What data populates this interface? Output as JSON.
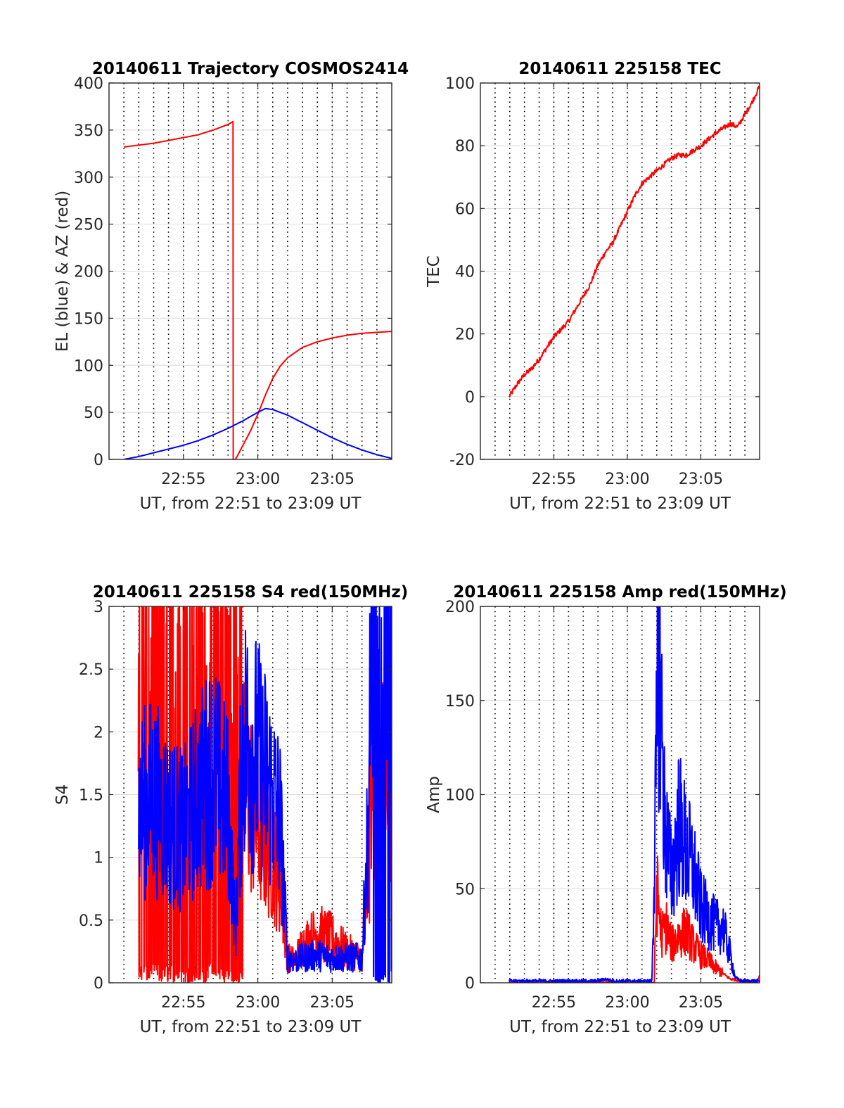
{
  "figure": {
    "background": "#ffffff",
    "colors": {
      "red": "#ff0000",
      "blue": "#0000ff",
      "axis": "#262626",
      "grid": "#dcdcdc"
    }
  },
  "chart_data": [
    {
      "id": "traj",
      "type": "line",
      "title": "20140611 Trajectory COSMOS2414",
      "xlabel": "UT, from 22:51 to 23:09 UT",
      "ylabel": "EL (blue) & AZ (red)",
      "xlim": [
        "22:50",
        "23:09"
      ],
      "ylim": [
        0,
        400
      ],
      "xticks": [
        "22:55",
        "23:00",
        "23:05"
      ],
      "yticks": [
        "0",
        "50",
        "100",
        "150",
        "200",
        "250",
        "300",
        "350",
        "400"
      ],
      "grid": true,
      "series": [
        {
          "color": "#ff0000",
          "x": [
            "22:51:00",
            "22:52:00",
            "22:53:00",
            "22:54:00",
            "22:55:00",
            "22:56:00",
            "22:57:00",
            "22:57:30",
            "22:58:00",
            "22:58:20",
            "22:58:30",
            "22:59:00",
            "22:59:30",
            "23:00:00",
            "23:00:30",
            "23:01:00",
            "23:01:30",
            "23:02:00",
            "23:03:00",
            "23:04:00",
            "23:05:00",
            "23:06:00",
            "23:07:00",
            "23:08:00",
            "23:09:00"
          ],
          "y": [
            332,
            334,
            336,
            339,
            342,
            345,
            350,
            353,
            356,
            359,
            0,
            15,
            30,
            48,
            68,
            86,
            99,
            108,
            119,
            125,
            129,
            132,
            134,
            135,
            136
          ]
        },
        {
          "color": "#0000ff",
          "x": [
            "22:51:00",
            "22:52:00",
            "22:53:00",
            "22:54:00",
            "22:55:00",
            "22:56:00",
            "22:57:00",
            "22:58:00",
            "22:59:00",
            "23:00:00",
            "23:00:30",
            "23:01:00",
            "23:02:00",
            "23:03:00",
            "23:04:00",
            "23:05:00",
            "23:06:00",
            "23:07:00",
            "23:08:00",
            "23:09:00"
          ],
          "y": [
            0,
            3,
            7,
            11,
            15,
            20,
            26,
            33,
            41,
            50,
            54,
            53,
            47,
            39,
            31,
            23,
            16,
            10,
            5,
            1
          ]
        }
      ]
    },
    {
      "id": "tec",
      "type": "line",
      "title": "20140611 225158 TEC",
      "xlabel": "UT, from 22:51 to 23:09 UT",
      "ylabel": "TEC",
      "xlim": [
        "22:50",
        "23:09"
      ],
      "ylim": [
        -20,
        100
      ],
      "xticks": [
        "22:55",
        "23:00",
        "23:05"
      ],
      "yticks": [
        "-20",
        "0",
        "20",
        "40",
        "60",
        "80",
        "100"
      ],
      "grid": true,
      "series": [
        {
          "color": "#ff0000",
          "x": [
            "22:51:58",
            "22:52:30",
            "22:53:00",
            "22:53:30",
            "22:54:00",
            "22:55:00",
            "22:56:00",
            "22:57:00",
            "22:57:30",
            "22:58:00",
            "22:58:30",
            "22:59:00",
            "22:59:30",
            "23:00:00",
            "23:00:30",
            "23:01:00",
            "23:01:30",
            "23:02:00",
            "23:02:30",
            "23:03:00",
            "23:03:30",
            "23:04:00",
            "23:05:00",
            "23:06:00",
            "23:07:00",
            "23:07:30",
            "23:08:00",
            "23:08:30",
            "23:09:00"
          ],
          "y": [
            0,
            4,
            7,
            9,
            12,
            19,
            24,
            32,
            36,
            42,
            46,
            49,
            54,
            59,
            64,
            68,
            70,
            72,
            74,
            76,
            77,
            77,
            80,
            84,
            87,
            86,
            90,
            94,
            99
          ]
        }
      ]
    },
    {
      "id": "s4",
      "type": "line",
      "title": "20140611 225158 S4 red(150MHz)",
      "xlabel": "UT, from 22:51 to 23:09 UT",
      "ylabel": "S4",
      "xlim": [
        "22:50",
        "23:09"
      ],
      "ylim": [
        0,
        3
      ],
      "xticks": [
        "22:55",
        "23:00",
        "23:05"
      ],
      "yticks": [
        "0",
        "0.5",
        "1",
        "1.5",
        "2",
        "2.5",
        "3"
      ],
      "grid": true,
      "series": [
        {
          "color": "#ff0000",
          "x": [
            "22:51:58",
            "22:53:00",
            "22:54:00",
            "22:55:00",
            "22:56:00",
            "22:57:00",
            "22:58:00",
            "22:58:30",
            "22:59:00",
            "23:00:00",
            "23:01:00",
            "23:01:30",
            "23:02:00",
            "23:02:30",
            "23:03:00",
            "23:04:00",
            "23:05:00",
            "23:06:00",
            "23:07:00",
            "23:08:00",
            "23:09:00"
          ],
          "y": [
            1.5,
            1.4,
            1.2,
            1.3,
            1.4,
            1.5,
            1.2,
            0.3,
            1.6,
            1.3,
            1.0,
            0.8,
            0.2,
            0.18,
            0.3,
            0.4,
            0.35,
            0.25,
            0.2,
            1.8,
            1.4
          ]
        },
        {
          "color": "#0000ff",
          "x": [
            "22:51:58",
            "22:53:00",
            "22:54:00",
            "22:55:00",
            "22:56:00",
            "22:57:00",
            "22:58:00",
            "22:58:30",
            "22:59:00",
            "23:00:00",
            "23:01:00",
            "23:01:30",
            "23:02:00",
            "23:02:30",
            "23:03:00",
            "23:04:00",
            "23:05:00",
            "23:06:00",
            "23:07:00",
            "23:07:30",
            "23:08:00",
            "23:09:00"
          ],
          "y": [
            1.4,
            1.5,
            1.3,
            1.2,
            1.5,
            1.7,
            1.4,
            0.4,
            2.0,
            1.8,
            1.5,
            1.3,
            0.2,
            0.18,
            0.2,
            0.22,
            0.2,
            0.2,
            0.2,
            1.5,
            2.0,
            1.6
          ]
        }
      ]
    },
    {
      "id": "amp",
      "type": "line",
      "title": "20140611 225158 Amp red(150MHz)",
      "xlabel": "UT, from 22:51 to 23:09 UT",
      "ylabel": "Amp",
      "xlim": [
        "22:50",
        "23:09"
      ],
      "ylim": [
        0,
        200
      ],
      "xticks": [
        "22:55",
        "23:00",
        "23:05"
      ],
      "yticks": [
        "0",
        "50",
        "100",
        "150",
        "200"
      ],
      "grid": true,
      "series": [
        {
          "color": "#ff0000",
          "x": [
            "22:51:58",
            "22:55:00",
            "23:00:00",
            "23:01:50",
            "23:02:00",
            "23:02:20",
            "23:02:40",
            "23:03:00",
            "23:03:30",
            "23:04:00",
            "23:04:30",
            "23:05:00",
            "23:05:30",
            "23:06:00",
            "23:06:30",
            "23:07:00",
            "23:08:00",
            "23:08:50",
            "23:09:00"
          ],
          "y": [
            0,
            0,
            0,
            0,
            50,
            25,
            30,
            20,
            25,
            28,
            20,
            15,
            12,
            8,
            5,
            2,
            1,
            0,
            4
          ]
        },
        {
          "color": "#0000ff",
          "x": [
            "22:51:58",
            "22:55:00",
            "22:58:00",
            "22:58:30",
            "22:59:00",
            "23:00:00",
            "23:01:40",
            "23:02:00",
            "23:02:10",
            "23:02:30",
            "23:03:00",
            "23:03:30",
            "23:04:00",
            "23:04:30",
            "23:05:00",
            "23:05:30",
            "23:06:00",
            "23:06:30",
            "23:07:00",
            "23:07:20",
            "23:07:40",
            "23:08:00",
            "23:09:00"
          ],
          "y": [
            1,
            1,
            1,
            2,
            1,
            1,
            1,
            120,
            190,
            90,
            55,
            85,
            70,
            60,
            40,
            35,
            30,
            30,
            15,
            3,
            1,
            1,
            1
          ]
        }
      ]
    }
  ]
}
